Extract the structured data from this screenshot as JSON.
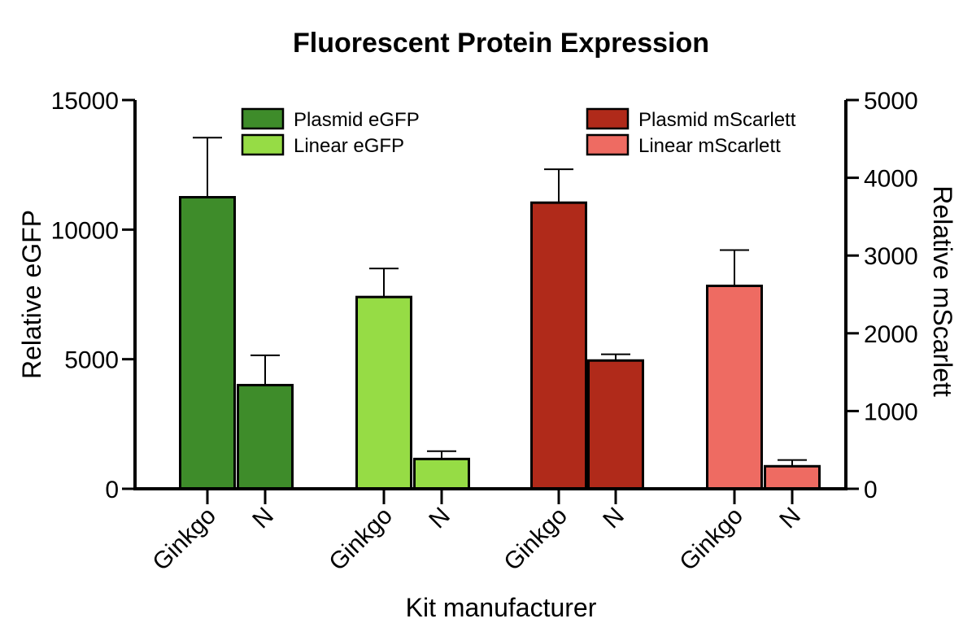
{
  "chart_data": {
    "type": "bar",
    "title": "Fluorescent Protein Expression",
    "xlabel": "Kit manufacturer",
    "ylabel_left": "Relative eGFP",
    "ylabel_right": "Relative mScarlett",
    "ylim_left": [
      0,
      15000
    ],
    "ylim_right": [
      0,
      5000
    ],
    "yticks_left": [
      0,
      5000,
      10000,
      15000
    ],
    "yticks_right": [
      0,
      1000,
      2000,
      3000,
      4000,
      5000
    ],
    "ytick_labels_left": [
      "0",
      "5000",
      "10000",
      "15000"
    ],
    "ytick_labels_right": [
      "0",
      "1000",
      "2000",
      "3000",
      "4000",
      "5000"
    ],
    "grid": false,
    "series": [
      {
        "name": "Plasmid eGFP",
        "axis": "left",
        "color": "#3E8C2A",
        "categories": [
          "Ginkgo",
          "N"
        ],
        "values": [
          11250,
          4000
        ],
        "errors": [
          2300,
          1150
        ]
      },
      {
        "name": "Linear eGFP",
        "axis": "left",
        "color": "#96DC45",
        "categories": [
          "Ginkgo",
          "N"
        ],
        "values": [
          7400,
          1150
        ],
        "errors": [
          1100,
          300
        ]
      },
      {
        "name": "Plasmid mScarlett",
        "axis": "right",
        "color": "#B02A1A",
        "categories": [
          "Ginkgo",
          "N"
        ],
        "values": [
          3680,
          1650
        ],
        "errors": [
          430,
          80
        ]
      },
      {
        "name": "Linear mScarlett",
        "axis": "right",
        "color": "#EE6B62",
        "categories": [
          "Ginkgo",
          "N"
        ],
        "values": [
          2610,
          290
        ],
        "errors": [
          460,
          80
        ]
      }
    ],
    "legend": {
      "left_column": [
        "Plasmid eGFP",
        "Linear eGFP"
      ],
      "right_column": [
        "Plasmid mScarlett",
        "Linear mScarlett"
      ]
    }
  }
}
